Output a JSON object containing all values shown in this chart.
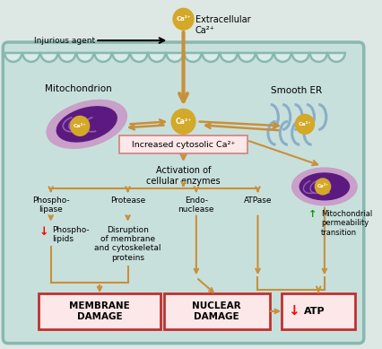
{
  "bg_outer": "#dde8e4",
  "bg_cell": "#c8e0dc",
  "cell_border": "#88b8b0",
  "arrow_color": "#c8903a",
  "mito_outer": "#d8a8d0",
  "mito_inner": "#7030a0",
  "mito_center_fill": "#c8a028",
  "er_color": "#a8c0d8",
  "ca_ball_color": "#d4a828",
  "ca_text": "Ca²⁺",
  "box_pink": "#fce8e8",
  "box_pink_border": "#d08080",
  "box_red_border": "#c03030",
  "label_extracellular": "Extracellular\nCa²⁺",
  "label_injurious": "Injurious agent",
  "label_mito": "Mitochondrion",
  "label_er": "Smooth ER",
  "label_cytosolic": "Increased cytosolic Ca²⁺",
  "label_activation": "Activation of\ncellular enzymes",
  "label_phospholipase": "Phospho-\nlipase",
  "label_protease": "Protease",
  "label_endonuclease": "Endo-\nnuclease",
  "label_atpase": "ATPase",
  "label_phospholipids": "Phospho-\nlipids",
  "label_disruption": "Disruption\nof membrane\nand cytoskeletal\nproteins",
  "label_mito_perm": "Mitochondrial\npermeability\ntransition",
  "label_membrane_damage": "MEMBRANE\nDAMAGE",
  "label_nuclear_damage": "NUCLEAR\nDAMAGE",
  "label_atp": "ATP",
  "figsize": [
    4.26,
    3.89
  ],
  "dpi": 100
}
